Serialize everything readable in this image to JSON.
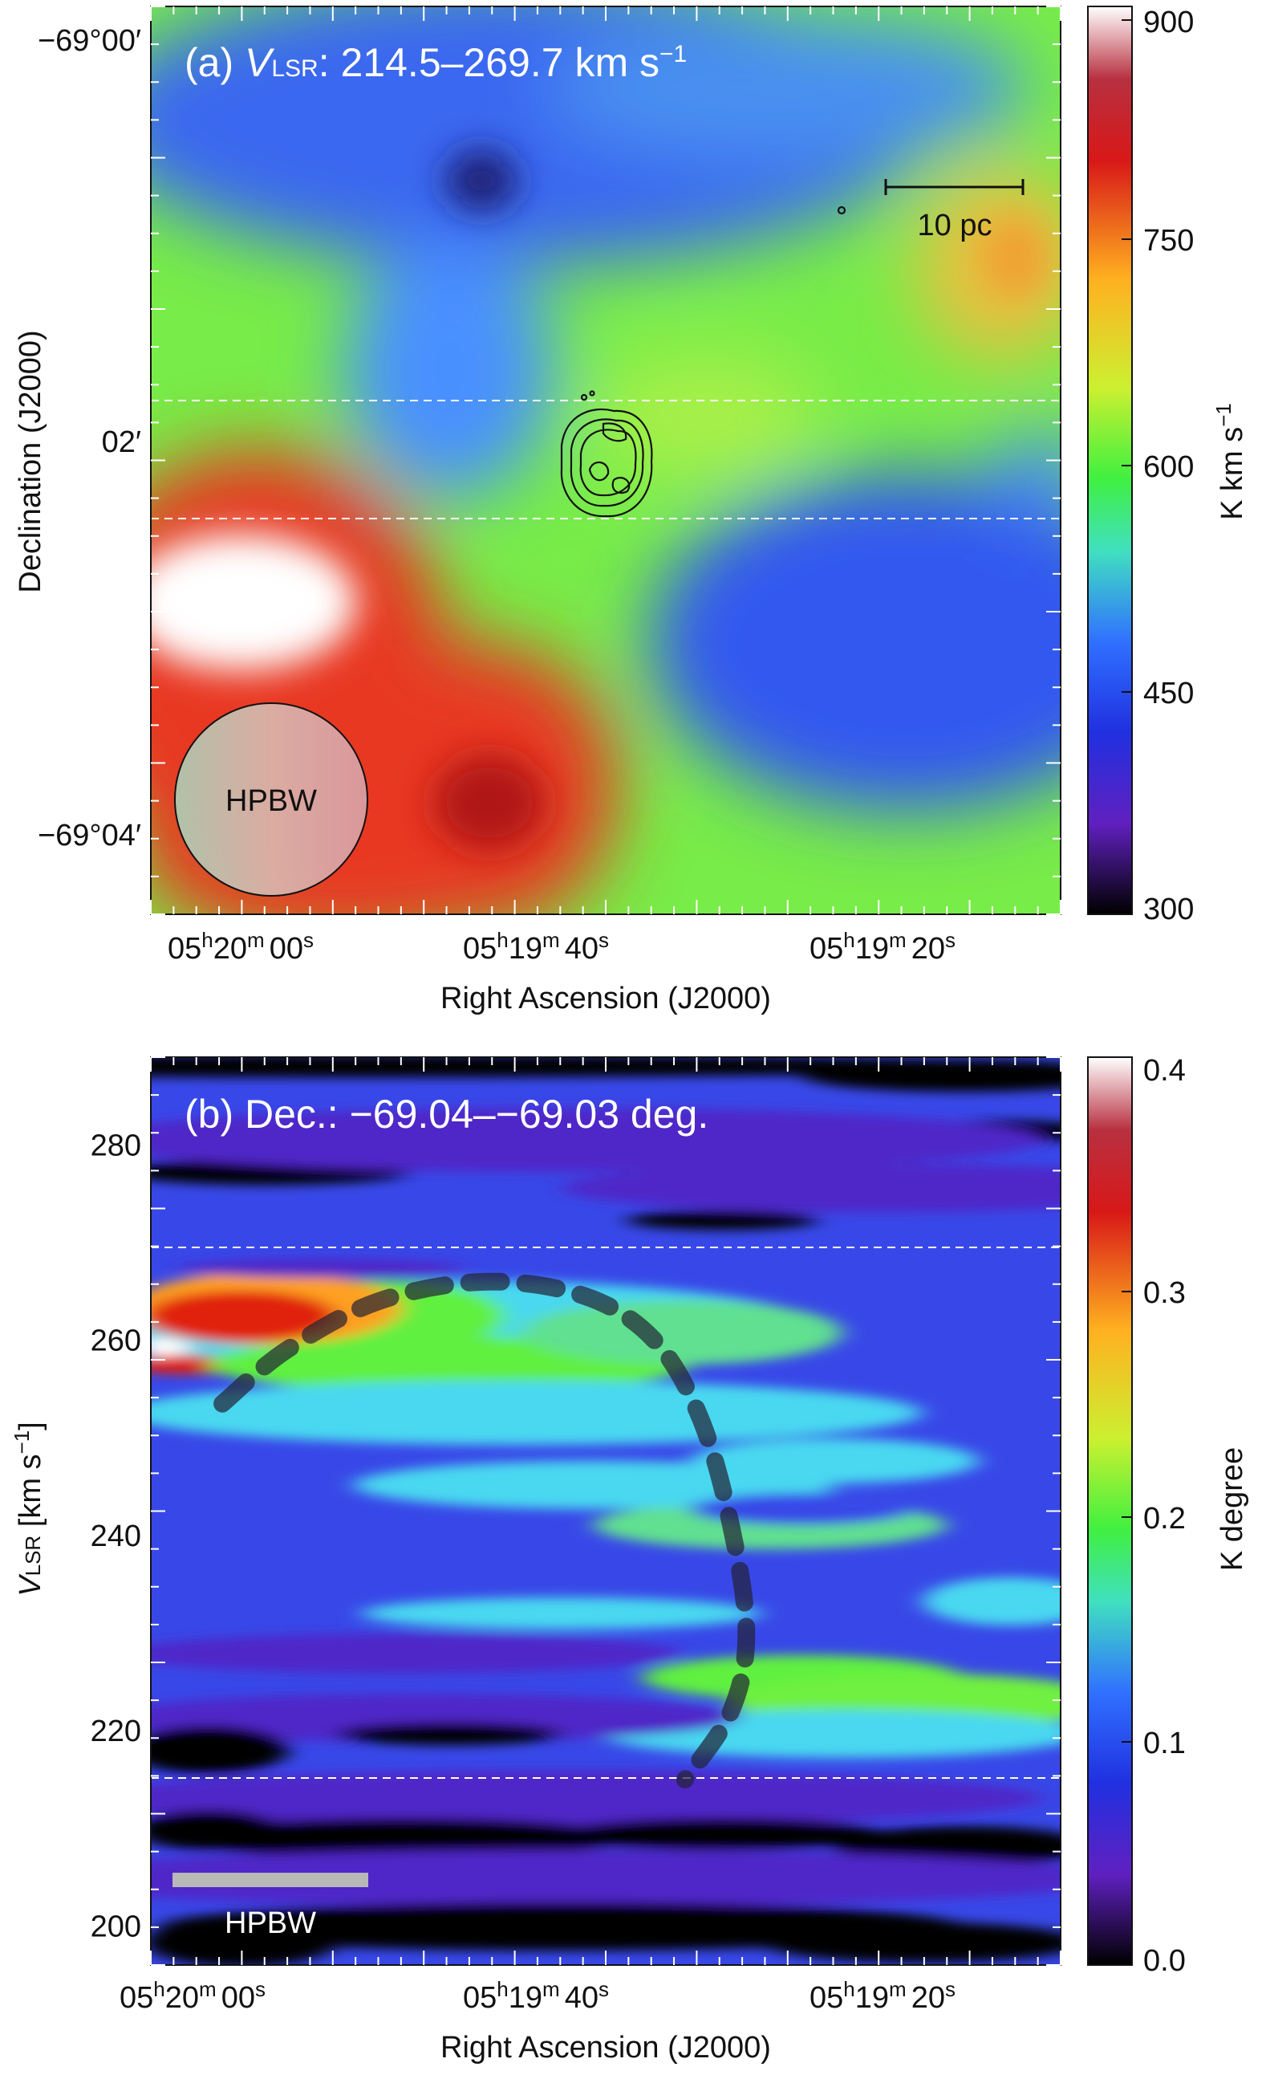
{
  "chart_data": [
    {
      "panel": "(a)",
      "type": "heatmap",
      "title_prefix": "(a) ",
      "title_var": "V",
      "title_sub": "LSR",
      "title_range": ": 214.5–269.7 km s",
      "title_exp": "−1",
      "xlabel": "Right Ascension (J2000)",
      "ylabel": "Declination (J2000)",
      "x_ticks": [
        {
          "h": "05",
          "m": "20",
          "s": "00"
        },
        {
          "h": "05",
          "m": "19",
          "s": "40"
        },
        {
          "h": "05",
          "m": "19",
          "s": "20"
        }
      ],
      "y_ticks": [
        "−69°00′",
        "02′",
        "−69°04′"
      ],
      "colorbar": {
        "label": "K km s",
        "label_exp": "−1",
        "ticks": [
          "900",
          "750",
          "600",
          "450",
          "300"
        ],
        "range": [
          300,
          900
        ]
      },
      "scale_bar_label": "10 pc",
      "beam_label": "HPBW",
      "dec_slice_lines": [
        "upper dashed line",
        "lower dashed line"
      ],
      "features": {
        "white_peak": ">900 near RA 05h20m00s, Dec −69°02.6′",
        "red_region": "~800 lower left toward RA 05h19m45s, Dec −69°04′",
        "blue_lane": "~450 across top and right-center",
        "dark_spot": "~350 near RA 05h19m44s, Dec −69°00.5′",
        "orange_peak": "~720 upper right edge"
      }
    },
    {
      "panel": "(b)",
      "type": "heatmap",
      "title": "(b) Dec.: −69.04–−69.03 deg.",
      "xlabel": "Right Ascension (J2000)",
      "ylabel_var": "V",
      "ylabel_sub": "LSR",
      "ylabel_unit": " [km s",
      "ylabel_exp": "−1",
      "ylabel_close": "]",
      "x_ticks": [
        {
          "h": "05",
          "m": "20",
          "s": "00"
        },
        {
          "h": "05",
          "m": "19",
          "s": "40"
        },
        {
          "h": "05",
          "m": "19",
          "s": "20"
        }
      ],
      "y_ticks": [
        280,
        260,
        240,
        220,
        200
      ],
      "ylim": [
        196,
        289
      ],
      "colorbar": {
        "label": "K degree",
        "ticks": [
          "0.4",
          "0.3",
          "0.2",
          "0.1",
          "0.0"
        ],
        "range": [
          0.0,
          0.4
        ]
      },
      "velocity_lines_km_s": [
        269.7,
        214.5
      ],
      "beam_label": "HPBW",
      "expanding_shell_arc": {
        "ra_s": [
          61.2,
          57.0,
          51.0,
          44.0,
          37.5,
          33.0,
          30.0,
          28.0,
          27.0,
          28.0,
          31.0
        ],
        "vlsr": [
          253.5,
          259.0,
          264.0,
          266.0,
          264.5,
          260.0,
          252.0,
          241.0,
          230.0,
          222.0,
          215.0
        ]
      }
    }
  ]
}
